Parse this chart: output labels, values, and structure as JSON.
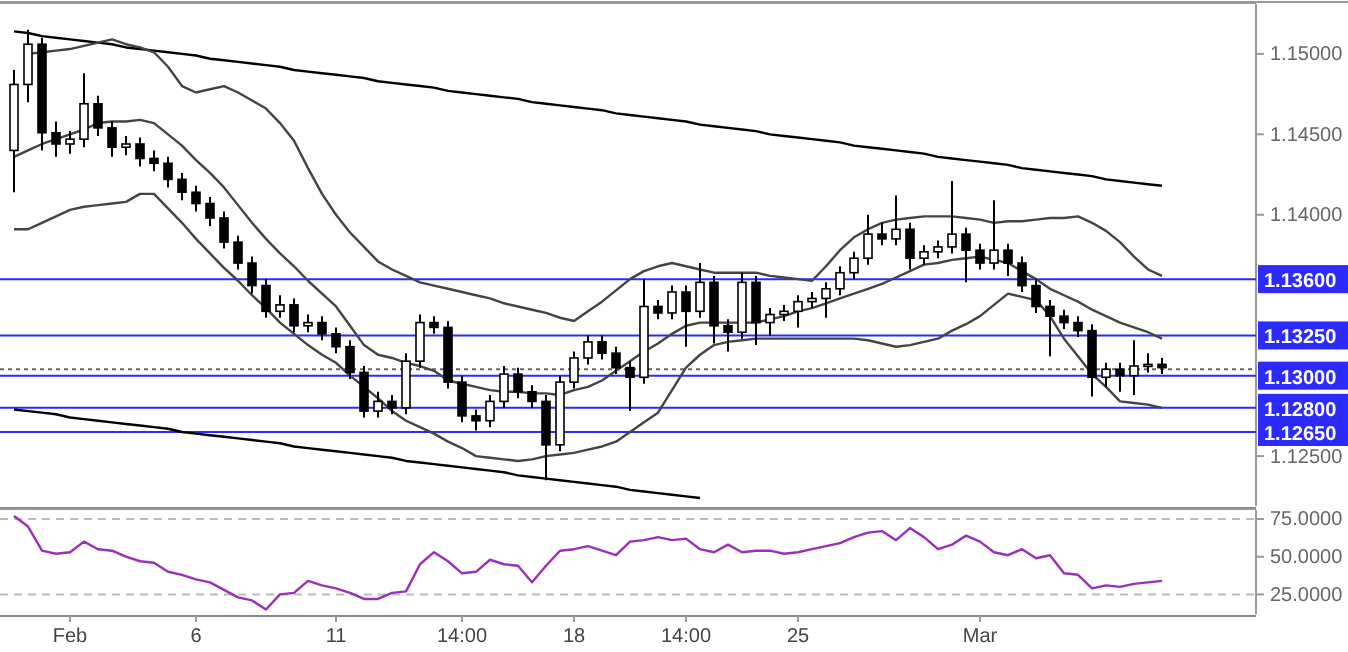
{
  "chart_data": [
    {
      "type": "candlestick",
      "ylim": [
        1.1219,
        1.1531
      ],
      "tick_labels": "y",
      "yticks": [
        {
          "value": 1.125,
          "label": "1.12500"
        },
        {
          "value": 1.14,
          "label": "1.14000"
        },
        {
          "value": 1.145,
          "label": "1.14500"
        },
        {
          "value": 1.15,
          "label": "1.15000"
        }
      ],
      "categories": [
        null,
        null,
        null,
        null,
        null,
        null,
        null,
        null,
        null,
        null,
        null,
        null,
        null,
        null,
        null,
        null,
        null,
        null,
        null,
        null,
        null,
        null,
        null,
        null,
        null,
        null,
        null,
        null,
        null,
        null,
        null,
        null,
        null,
        null,
        null,
        null,
        null,
        null,
        null,
        null,
        null,
        null,
        null,
        null,
        null,
        null,
        null,
        null,
        null,
        null,
        null,
        null,
        null,
        null,
        null,
        null,
        null,
        null,
        null,
        null,
        null,
        null,
        null,
        null,
        null,
        null,
        null,
        null,
        null,
        null,
        null,
        null,
        null,
        null,
        null,
        null,
        null,
        null,
        null,
        null,
        null,
        null,
        null
      ],
      "ohlc": [
        [
          1.144,
          1.149,
          1.1414,
          1.1481
        ],
        [
          1.1481,
          1.1515,
          1.147,
          1.1506
        ],
        [
          1.1506,
          1.151,
          1.144,
          1.1451
        ],
        [
          1.1451,
          1.1458,
          1.1436,
          1.1444
        ],
        [
          1.1444,
          1.1452,
          1.1438,
          1.1447
        ],
        [
          1.1447,
          1.1488,
          1.1442,
          1.1469
        ],
        [
          1.1469,
          1.1474,
          1.1449,
          1.1454
        ],
        [
          1.1454,
          1.1458,
          1.1436,
          1.1442
        ],
        [
          1.1442,
          1.1449,
          1.1437,
          1.1444
        ],
        [
          1.1444,
          1.1448,
          1.143,
          1.1435
        ],
        [
          1.1435,
          1.144,
          1.1427,
          1.1432
        ],
        [
          1.1432,
          1.1436,
          1.1417,
          1.1422
        ],
        [
          1.1422,
          1.1426,
          1.1409,
          1.1414
        ],
        [
          1.1414,
          1.1418,
          1.1402,
          1.1407
        ],
        [
          1.1407,
          1.1411,
          1.1393,
          1.1398
        ],
        [
          1.1398,
          1.1402,
          1.1379,
          1.1383
        ],
        [
          1.1383,
          1.1387,
          1.1366,
          1.137
        ],
        [
          1.137,
          1.1374,
          1.1351,
          1.1356
        ],
        [
          1.1356,
          1.136,
          1.1336,
          1.134
        ],
        [
          1.134,
          1.135,
          1.1336,
          1.1344
        ],
        [
          1.1344,
          1.1348,
          1.1327,
          1.1331
        ],
        [
          1.1331,
          1.1338,
          1.1327,
          1.1333
        ],
        [
          1.1333,
          1.1337,
          1.1322,
          1.1326
        ],
        [
          1.1326,
          1.133,
          1.1314,
          1.1318
        ],
        [
          1.1318,
          1.1322,
          1.1298,
          1.1302
        ],
        [
          1.1302,
          1.1306,
          1.1274,
          1.1278
        ],
        [
          1.1278,
          1.129,
          1.1274,
          1.1284
        ],
        [
          1.1284,
          1.1288,
          1.1276,
          1.128
        ],
        [
          1.128,
          1.1314,
          1.1276,
          1.1309
        ],
        [
          1.1309,
          1.1338,
          1.1305,
          1.1333
        ],
        [
          1.1333,
          1.1337,
          1.1326,
          1.133
        ],
        [
          1.133,
          1.1334,
          1.1292,
          1.1296
        ],
        [
          1.1296,
          1.13,
          1.1271,
          1.1275
        ],
        [
          1.1275,
          1.1279,
          1.1266,
          1.1272
        ],
        [
          1.1272,
          1.1288,
          1.1268,
          1.1284
        ],
        [
          1.1284,
          1.1306,
          1.128,
          1.1301
        ],
        [
          1.1301,
          1.1305,
          1.1286,
          1.129
        ],
        [
          1.129,
          1.1294,
          1.128,
          1.1284
        ],
        [
          1.1284,
          1.1288,
          1.1235,
          1.1257
        ],
        [
          1.1257,
          1.13,
          1.1253,
          1.1296
        ],
        [
          1.1296,
          1.1315,
          1.1292,
          1.1311
        ],
        [
          1.1311,
          1.1325,
          1.1307,
          1.1321
        ],
        [
          1.1321,
          1.1325,
          1.131,
          1.1314
        ],
        [
          1.1314,
          1.1318,
          1.1301,
          1.1305
        ],
        [
          1.1305,
          1.1309,
          1.1278,
          1.1299
        ],
        [
          1.1299,
          1.136,
          1.1295,
          1.1343
        ],
        [
          1.1343,
          1.1347,
          1.1335,
          1.1339
        ],
        [
          1.1339,
          1.1356,
          1.1335,
          1.1352
        ],
        [
          1.1352,
          1.1356,
          1.1318,
          1.134
        ],
        [
          1.134,
          1.137,
          1.1336,
          1.1358
        ],
        [
          1.1358,
          1.1362,
          1.132,
          1.1331
        ],
        [
          1.1331,
          1.1335,
          1.1315,
          1.1327
        ],
        [
          1.1327,
          1.1364,
          1.1323,
          1.1358
        ],
        [
          1.1358,
          1.1362,
          1.1319,
          1.1333
        ],
        [
          1.1333,
          1.1342,
          1.1325,
          1.1338
        ],
        [
          1.1338,
          1.1344,
          1.1334,
          1.134
        ],
        [
          1.134,
          1.135,
          1.133,
          1.1346
        ],
        [
          1.1346,
          1.1352,
          1.1342,
          1.1348
        ],
        [
          1.1348,
          1.1358,
          1.1336,
          1.1354
        ],
        [
          1.1354,
          1.1368,
          1.135,
          1.1364
        ],
        [
          1.1364,
          1.1377,
          1.136,
          1.1373
        ],
        [
          1.1373,
          1.14,
          1.1369,
          1.1388
        ],
        [
          1.1388,
          1.1395,
          1.1381,
          1.1385
        ],
        [
          1.1385,
          1.1412,
          1.1381,
          1.1391
        ],
        [
          1.1391,
          1.1395,
          1.1366,
          1.1373
        ],
        [
          1.1373,
          1.1381,
          1.1369,
          1.1377
        ],
        [
          1.1377,
          1.1384,
          1.1373,
          1.138
        ],
        [
          1.138,
          1.1421,
          1.1376,
          1.1388
        ],
        [
          1.1388,
          1.1392,
          1.1358,
          1.1378
        ],
        [
          1.1378,
          1.1382,
          1.1366,
          1.137
        ],
        [
          1.137,
          1.1409,
          1.1366,
          1.1378
        ],
        [
          1.1378,
          1.1382,
          1.1362,
          1.137
        ],
        [
          1.137,
          1.1374,
          1.1352,
          1.1356
        ],
        [
          1.1356,
          1.136,
          1.1339,
          1.1343
        ],
        [
          1.1343,
          1.1347,
          1.1312,
          1.1337
        ],
        [
          1.1337,
          1.1341,
          1.1329,
          1.1333
        ],
        [
          1.1333,
          1.1337,
          1.1324,
          1.1328
        ],
        [
          1.1328,
          1.1332,
          1.1287,
          1.1299
        ],
        [
          1.1299,
          1.1308,
          1.1293,
          1.1304
        ],
        [
          1.1304,
          1.1308,
          1.129,
          1.13
        ],
        [
          1.13,
          1.1322,
          1.1288,
          1.1306
        ],
        [
          1.1306,
          1.1314,
          1.1302,
          1.1307
        ],
        [
          1.1307,
          1.1311,
          1.1301,
          1.1305
        ]
      ],
      "series": [
        {
          "type": "line",
          "color": "#000000",
          "values": [
            1.1514,
            1.1513,
            1.1511,
            1.151,
            1.1509,
            1.1508,
            1.1507,
            1.1506,
            1.1504,
            1.1503,
            1.1502,
            1.1501,
            1.15,
            1.1499,
            1.1497,
            1.1496,
            1.1495,
            1.1494,
            1.1493,
            1.1492,
            1.149,
            1.1489,
            1.1488,
            1.1487,
            1.1486,
            1.1485,
            1.1483,
            1.1482,
            1.1481,
            1.148,
            1.1479,
            1.1477,
            1.1476,
            1.1475,
            1.1474,
            1.1473,
            1.1472,
            1.147,
            1.1469,
            1.1468,
            1.1467,
            1.1466,
            1.1465,
            1.1463,
            1.1462,
            1.1461,
            1.146,
            1.1459,
            1.1458,
            1.1456,
            1.1455,
            1.1454,
            1.1453,
            1.1452,
            1.145,
            1.1449,
            1.1448,
            1.1447,
            1.1446,
            1.1445,
            1.1443,
            1.1442,
            1.1441,
            1.144,
            1.1439,
            1.1438,
            1.1436,
            1.1435,
            1.1434,
            1.1433,
            1.1432,
            1.1431,
            1.1429,
            1.1428,
            1.1427,
            1.1426,
            1.1425,
            1.1424,
            1.1422,
            1.1421,
            1.142,
            1.1419,
            1.1418
          ]
        },
        {
          "type": "line",
          "color": "#000000",
          "values": [
            1.1279,
            1.1278,
            1.1277,
            1.1276,
            1.1274,
            1.1273,
            1.1272,
            1.1271,
            1.127,
            1.1269,
            1.1268,
            1.1267,
            1.1265,
            1.1264,
            1.1263,
            1.1262,
            1.1261,
            1.126,
            1.1259,
            1.1258,
            1.1256,
            1.1255,
            1.1254,
            1.1253,
            1.1252,
            1.1251,
            1.125,
            1.1249,
            1.1247,
            1.1246,
            1.1245,
            1.1244,
            1.1243,
            1.1242,
            1.1241,
            1.124,
            1.1238,
            1.1237,
            1.1236,
            1.1235,
            1.1234,
            1.1233,
            1.1232,
            1.1231,
            1.1229,
            1.1228,
            1.1227,
            1.1226,
            1.1225,
            1.1224,
            null,
            null,
            null,
            null,
            null,
            null,
            null,
            null,
            null,
            null,
            null,
            null,
            null,
            null,
            null,
            null,
            null,
            null,
            null,
            null,
            null,
            null,
            null,
            null,
            null,
            null,
            null,
            null,
            null,
            null,
            null,
            null,
            null
          ]
        },
        {
          "type": "line",
          "color": "#444444",
          "values": [
            null,
            1.15,
            1.1501,
            1.1502,
            1.1503,
            1.1505,
            1.1507,
            1.1509,
            1.1506,
            1.1504,
            1.1501,
            1.1492,
            1.148,
            1.1476,
            1.1478,
            1.148,
            1.1476,
            1.1471,
            1.1466,
            1.1457,
            1.1446,
            1.1429,
            1.1413,
            1.14,
            1.1389,
            1.138,
            1.1371,
            1.1366,
            1.1362,
            1.1358,
            1.1356,
            1.1354,
            1.1352,
            1.135,
            1.1348,
            1.1345,
            1.1343,
            1.1341,
            1.1339,
            1.1336,
            1.1334,
            1.134,
            1.1346,
            1.1353,
            1.136,
            1.1365,
            1.1368,
            1.137,
            1.1368,
            1.1366,
            1.1364,
            1.1364,
            1.1364,
            1.1364,
            1.1362,
            1.1361,
            1.136,
            1.1359,
            1.1368,
            1.1378,
            1.1386,
            1.1391,
            1.1395,
            1.1397,
            1.1398,
            1.1399,
            1.1399,
            1.1399,
            1.1398,
            1.1397,
            1.1395,
            1.1396,
            1.1396,
            1.1397,
            1.1398,
            1.1398,
            1.1399,
            1.1395,
            1.139,
            1.1383,
            1.1374,
            1.1366,
            1.1362
          ]
        },
        {
          "type": "line",
          "color": "#444444",
          "values": [
            1.1436,
            1.144,
            1.1444,
            1.1447,
            1.145,
            1.1453,
            1.1457,
            1.1458,
            1.1458,
            1.1459,
            1.1457,
            1.145,
            1.1443,
            1.1434,
            1.1426,
            1.1417,
            1.1406,
            1.1395,
            1.1385,
            1.1376,
            1.1368,
            1.1359,
            1.1351,
            1.1343,
            1.1331,
            1.1319,
            1.1313,
            1.1311,
            1.1308,
            1.1306,
            1.1303,
            1.1297,
            1.1295,
            1.1293,
            1.1291,
            1.129,
            1.129,
            1.1289,
            1.1289,
            1.1288,
            1.1291,
            1.1293,
            1.1297,
            1.1303,
            1.1309,
            1.1315,
            1.132,
            1.1326,
            1.1331,
            1.1333,
            1.1333,
            1.1333,
            1.1333,
            1.1333,
            1.1335,
            1.1337,
            1.134,
            1.1342,
            1.1345,
            1.1348,
            1.1351,
            1.1354,
            1.1357,
            1.1361,
            1.1365,
            1.1369,
            1.137,
            1.1372,
            1.1373,
            1.1374,
            1.1372,
            1.137,
            1.1365,
            1.136,
            1.1354,
            1.135,
            1.1346,
            1.1341,
            1.1337,
            1.1333,
            1.133,
            1.1327,
            1.1323
          ]
        },
        {
          "type": "line",
          "color": "#444444",
          "values": [
            1.1391,
            1.1391,
            1.1395,
            1.1399,
            1.1403,
            1.1405,
            1.1406,
            1.1407,
            1.1408,
            1.1413,
            1.1413,
            1.1404,
            1.1395,
            1.1385,
            1.1376,
            1.1367,
            1.1359,
            1.135,
            1.1342,
            1.1333,
            1.1326,
            1.1319,
            1.1313,
            1.1308,
            1.13,
            1.1293,
            1.1286,
            1.1278,
            1.1272,
            1.1268,
            1.1264,
            1.1259,
            1.1255,
            1.125,
            1.1249,
            1.1248,
            1.1247,
            1.1248,
            1.125,
            1.1251,
            1.1252,
            1.1254,
            1.1256,
            1.1259,
            1.1265,
            1.1271,
            1.1277,
            1.1291,
            1.1305,
            1.1313,
            1.1319,
            1.1321,
            1.1322,
            1.1323,
            1.1323,
            1.1323,
            1.1323,
            1.1323,
            1.1323,
            1.1323,
            1.1323,
            1.1322,
            1.132,
            1.1318,
            1.1319,
            1.1321,
            1.1323,
            1.1328,
            1.1332,
            1.1337,
            1.1344,
            1.1351,
            1.1349,
            1.1347,
            1.1337,
            1.1323,
            1.1312,
            1.1301,
            1.1293,
            1.1284,
            1.1283,
            1.1282,
            1.128
          ]
        }
      ],
      "ref_lines": [
        {
          "axis": "y",
          "value": 1.136,
          "label": "1.13600",
          "color": "#2b2bff"
        },
        {
          "axis": "y",
          "value": 1.1325,
          "label": "1.13250",
          "color": "#2b2bff"
        },
        {
          "axis": "y",
          "value": 1.13,
          "label": "1.13000",
          "color": "#2b2bff"
        },
        {
          "axis": "y",
          "value": 1.128,
          "label": "1.12800",
          "color": "#2b2bff"
        },
        {
          "axis": "y",
          "value": 1.1265,
          "label": "1.12650",
          "color": "#2b2bff"
        },
        {
          "axis": "y",
          "value": 1.1304,
          "color": "#666666",
          "line_style": "dotted"
        }
      ]
    },
    {
      "type": "line",
      "ylim": [
        12,
        81
      ],
      "color": "#9b2fb5",
      "yticks": [
        {
          "value": 25,
          "label": "25.0000"
        },
        {
          "value": 50,
          "label": "50.0000"
        },
        {
          "value": 75,
          "label": "75.0000"
        }
      ],
      "categories": [
        null,
        null,
        null,
        null,
        "Feb",
        null,
        null,
        null,
        null,
        null,
        null,
        null,
        null,
        "6",
        null,
        null,
        null,
        null,
        null,
        null,
        null,
        null,
        null,
        "11",
        null,
        null,
        null,
        null,
        null,
        null,
        null,
        null,
        "14:00",
        null,
        null,
        null,
        null,
        null,
        null,
        null,
        "18",
        null,
        null,
        null,
        null,
        null,
        null,
        null,
        "14:00",
        null,
        null,
        null,
        null,
        null,
        null,
        null,
        "25",
        null,
        null,
        null,
        null,
        null,
        null,
        null,
        null,
        null,
        null,
        null,
        null,
        "Mar",
        null,
        null,
        null,
        null,
        null,
        null,
        null,
        null,
        null,
        null,
        null,
        null,
        null
      ],
      "values": [
        77,
        70,
        54,
        52,
        53,
        60,
        55,
        54,
        50,
        47,
        46,
        40,
        38,
        35,
        33,
        28,
        23,
        21,
        15,
        25,
        26,
        34,
        31,
        29,
        26,
        22,
        22,
        26,
        27,
        45,
        53,
        47,
        39,
        40,
        48,
        45,
        44,
        33,
        44,
        54,
        55,
        57,
        54,
        51,
        60,
        61,
        63,
        61,
        62,
        55,
        53,
        58,
        53,
        54,
        54,
        52,
        53,
        55,
        57,
        59,
        63,
        66,
        67,
        61,
        69,
        63,
        55,
        58,
        64,
        60,
        53,
        51,
        55,
        49,
        51,
        39,
        38,
        29,
        31,
        30,
        32,
        33,
        34
      ],
      "ref_lines": [
        {
          "axis": "y",
          "value": 75,
          "color": "#bbbbbb",
          "line_style": "dashed"
        },
        {
          "axis": "y",
          "value": 25,
          "color": "#bbbbbb",
          "line_style": "dashed"
        }
      ]
    }
  ]
}
